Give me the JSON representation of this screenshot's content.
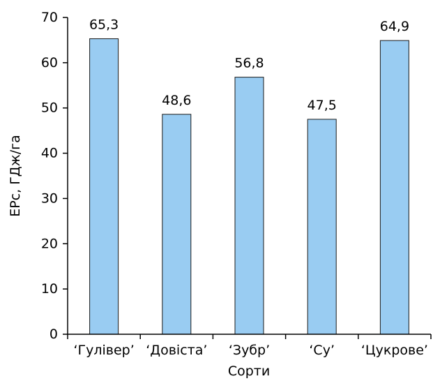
{
  "chart_data": {
    "type": "bar",
    "title": "",
    "xlabel": "Сорти",
    "ylabel": "ЕРс, ГДж/га",
    "categories": [
      "‘Гулівер’",
      "‘Довіста’",
      "‘Зубр’",
      "‘Су’",
      "‘Цукрове’"
    ],
    "values": [
      65.3,
      48.6,
      56.8,
      47.5,
      64.9
    ],
    "data_labels": [
      "65,3",
      "48,6",
      "56,8",
      "47,5",
      "64,9"
    ],
    "yticks": [
      0,
      10,
      20,
      30,
      40,
      50,
      60,
      70
    ],
    "ylim": [
      0,
      70
    ],
    "grid": false,
    "legend": "none",
    "colors": {
      "bar_fill": "#99CCF2",
      "bar_stroke": "#1a1a1a",
      "axis": "#000000",
      "text": "#000000"
    }
  }
}
